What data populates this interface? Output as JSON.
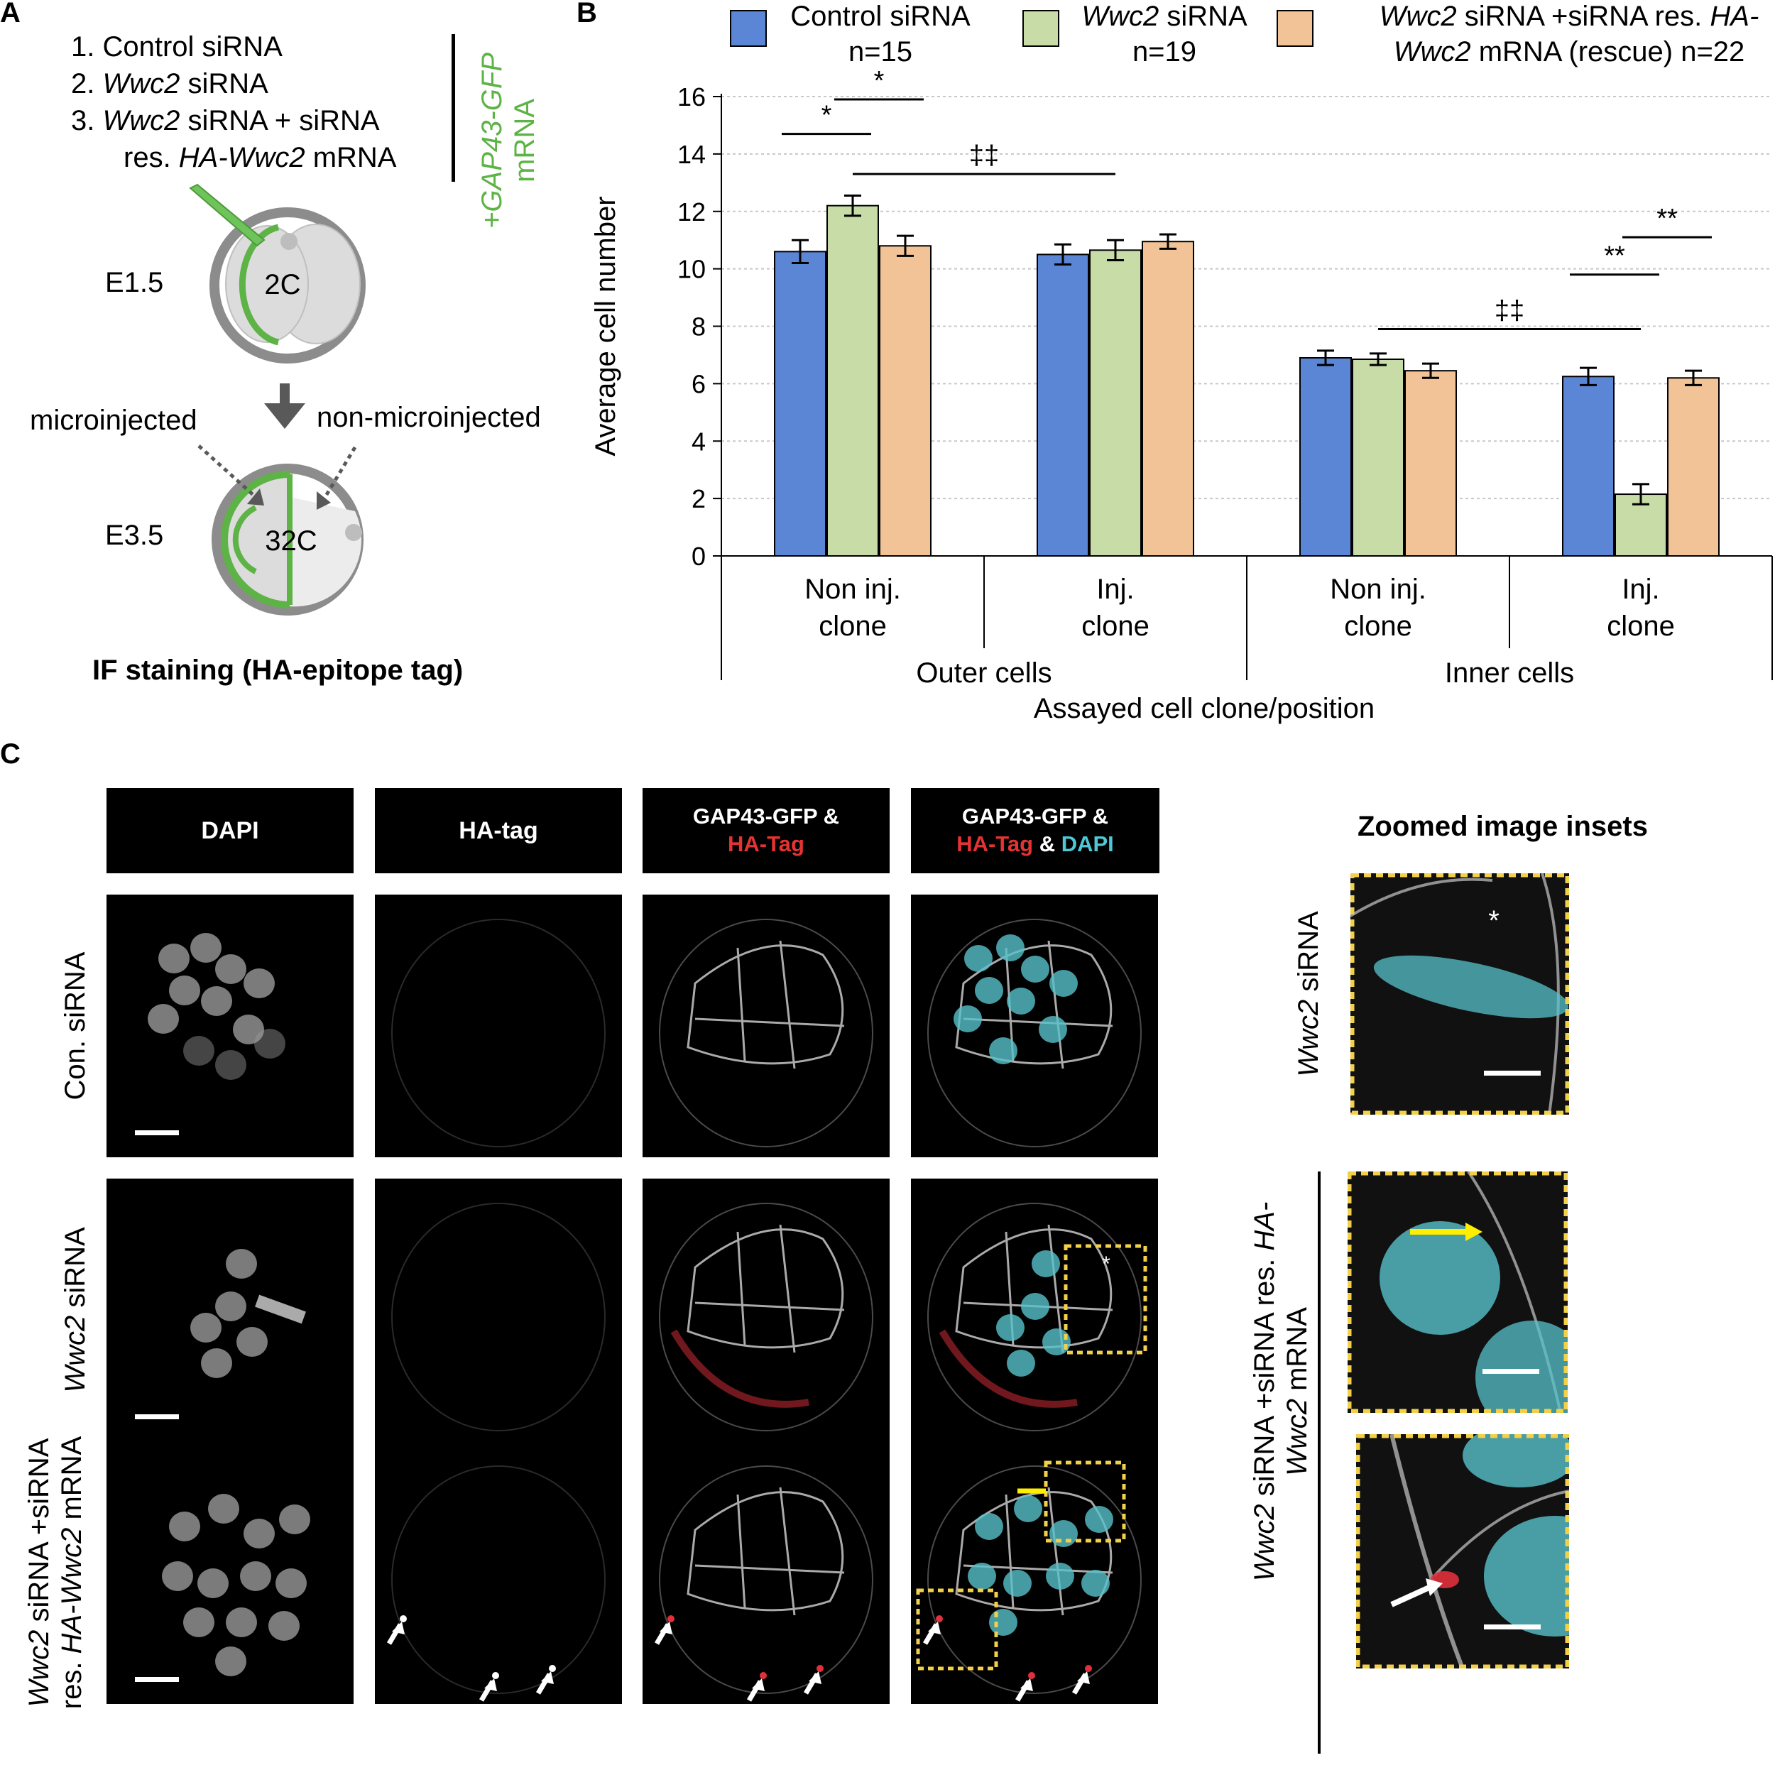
{
  "panel_labels": {
    "a": "A",
    "b": "B",
    "c": "C"
  },
  "panel_a": {
    "conditions": [
      {
        "num": "1.",
        "parts": [
          {
            "t": " Control siRNA",
            "i": false
          }
        ]
      },
      {
        "num": "2.",
        "parts": [
          {
            "t": " ",
            "i": false
          },
          {
            "t": "Wwc2",
            "i": true
          },
          {
            "t": " siRNA",
            "i": false
          }
        ]
      },
      {
        "num": "3.",
        "parts": [
          {
            "t": " ",
            "i": false
          },
          {
            "t": "Wwc2",
            "i": true
          },
          {
            "t": " siRNA + siRNA",
            "i": false
          }
        ]
      },
      {
        "num": "",
        "parts": [
          {
            "t": "res. ",
            "i": false
          },
          {
            "t": "HA-Wwc2",
            "i": true
          },
          {
            "t": " mRNA",
            "i": false
          }
        ]
      }
    ],
    "gfp_label_line1": "+GAP43-GFP",
    "gfp_label_line2": "mRNA",
    "stage1": "E1.5",
    "cell1": "2C",
    "microinjected": "microinjected",
    "non_microinjected": "non-microinjected",
    "stage2": "E3.5",
    "cell2": "32C",
    "if_staining": "IF staining (HA-epitope tag)",
    "colors": {
      "membrane": "#5db345",
      "shell": "#8c8c8c",
      "cell": "#d9d9d9"
    }
  },
  "chart_data": {
    "type": "bar",
    "ylabel": "Average cell number",
    "xlabel": "Assayed cell clone/position",
    "ylim": [
      0,
      16
    ],
    "yticks": [
      0,
      2,
      4,
      6,
      8,
      10,
      12,
      14,
      16
    ],
    "grid": true,
    "legend": [
      {
        "name_parts": [
          {
            "t": "Control siRNA",
            "i": false
          }
        ],
        "n": "n=15",
        "color": "#5b86d6"
      },
      {
        "name_parts": [
          {
            "t": "Wwc2",
            "i": true
          },
          {
            "t": " siRNA",
            "i": false
          }
        ],
        "n": "n=19",
        "color": "#c7dca6"
      },
      {
        "line1": [
          {
            "t": "Wwc2",
            "i": true
          },
          {
            "t": " siRNA +siRNA res. ",
            "i": false
          },
          {
            "t": "HA-",
            "i": true
          }
        ],
        "line2": [
          {
            "t": "Wwc2",
            "i": true
          },
          {
            "t": " mRNA (rescue) n=22",
            "i": false
          }
        ],
        "color": "#f1c397"
      }
    ],
    "categories": [
      {
        "line1": "Non inj.",
        "line2": "clone"
      },
      {
        "line1": "Inj.",
        "line2": "clone"
      },
      {
        "line1": "Non inj.",
        "line2": "clone"
      },
      {
        "line1": "Inj.",
        "line2": "clone"
      }
    ],
    "groups": [
      "Outer cells",
      "Inner cells"
    ],
    "series": [
      {
        "values": [
          10.6,
          10.5,
          6.9,
          6.25
        ],
        "errors": [
          0.4,
          0.35,
          0.25,
          0.3
        ]
      },
      {
        "values": [
          12.2,
          10.65,
          6.85,
          2.15
        ],
        "errors": [
          0.35,
          0.35,
          0.2,
          0.35
        ]
      },
      {
        "values": [
          10.8,
          10.95,
          6.45,
          6.2
        ],
        "errors": [
          0.35,
          0.25,
          0.25,
          0.25
        ]
      }
    ],
    "significance": [
      {
        "label": "*",
        "from": [
          0,
          0
        ],
        "to": [
          0,
          1
        ],
        "y": 14.7
      },
      {
        "label": "*",
        "from": [
          0,
          1
        ],
        "to": [
          0,
          2
        ],
        "y": 15.9
      },
      {
        "label": "‡‡",
        "from": [
          0,
          1
        ],
        "to": [
          1,
          1
        ],
        "y": 13.3
      },
      {
        "label": "‡‡",
        "from": [
          2,
          1
        ],
        "to": [
          3,
          1
        ],
        "y": 7.9
      },
      {
        "label": "**",
        "from": [
          3,
          0
        ],
        "to": [
          3,
          1
        ],
        "y": 9.8
      },
      {
        "label": "**",
        "from": [
          3,
          1
        ],
        "to": [
          3,
          2
        ],
        "y": 11.1
      }
    ]
  },
  "panel_c": {
    "headers": {
      "dapi": "DAPI",
      "ha": "HA-tag",
      "gfp_ha_1": "GAP43-GFP &",
      "gfp_ha_2": "HA-Tag",
      "merge_1": "GAP43-GFP &",
      "merge_2a": "HA-Tag",
      "merge_2b": " & ",
      "merge_2c": "DAPI"
    },
    "zoom_title": "Zoomed image insets",
    "rows": [
      {
        "parts": [
          {
            "t": "Con.  siRNA",
            "i": false
          }
        ]
      },
      {
        "parts": [
          {
            "t": "Wwc2",
            "i": true
          },
          {
            "t": " siRNA",
            "i": false
          }
        ]
      },
      {
        "line1": [
          {
            "t": "Wwc2",
            "i": true
          },
          {
            "t": " siRNA +siRNA",
            "i": false
          }
        ],
        "line2": [
          {
            "t": "res. ",
            "i": false
          },
          {
            "t": "HA-Wwc2",
            "i": true
          },
          {
            "t": " mRNA",
            "i": false
          }
        ]
      }
    ],
    "zoom_labels": {
      "top": [
        {
          "t": "Wwc2",
          "i": true
        },
        {
          "t": " siRNA",
          "i": false
        }
      ],
      "bottom_line1": [
        {
          "t": "Wwc2",
          "i": true
        },
        {
          "t": " siRNA +siRNA res. ",
          "i": false
        },
        {
          "t": "HA-",
          "i": true
        }
      ],
      "bottom_line2": [
        {
          "t": "Wwc2",
          "i": true
        },
        {
          "t": " mRNA",
          "i": false
        }
      ]
    },
    "asterisk": "*",
    "colors": {
      "dapi": "#57c2cc",
      "ha": "#e0303a",
      "membrane": "#c8c8c8",
      "inset_border": "#f2d04a",
      "yellow_arrow": "#ffee00"
    }
  }
}
